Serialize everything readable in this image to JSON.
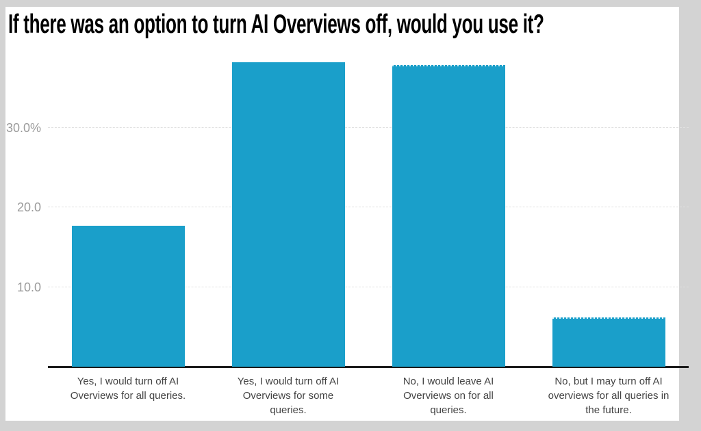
{
  "title": "If there was an option to turn AI Overviews off, would you use it?",
  "chart_data": {
    "type": "bar",
    "title": "If there was an option to turn AI Overviews off, would you use it?",
    "categories": [
      "Yes, I would turn off AI\nOverviews for all queries.",
      "Yes, I would turn off AI\nOverviews for some\nqueries.",
      "No, I would leave AI\nOverviews on for all\nqueries.",
      "No, but I may turn off AI\noverviews for all queries in\nthe future."
    ],
    "values": [
      17.7,
      38.2,
      37.9,
      6.2
    ],
    "unit": "%",
    "xlabel": "",
    "ylabel": "",
    "ylim": [
      0,
      40.9
    ],
    "y_ticks": [
      {
        "value": 10,
        "label": "10.0"
      },
      {
        "value": 20,
        "label": "20.0"
      },
      {
        "value": 30,
        "label": "30.0%"
      }
    ],
    "grid": true,
    "legend": false,
    "bar_color": "#1a9fca"
  },
  "colors": {
    "frame_border": "#d3d3d3",
    "chart_background": "#ffffff",
    "bar": "#1a9fca",
    "axis_line": "#1c1c1c",
    "gridline": "#e0e0e0",
    "y_tick_text": "#9b9b9b",
    "x_label_text": "#424242",
    "title_text": "#000000"
  }
}
